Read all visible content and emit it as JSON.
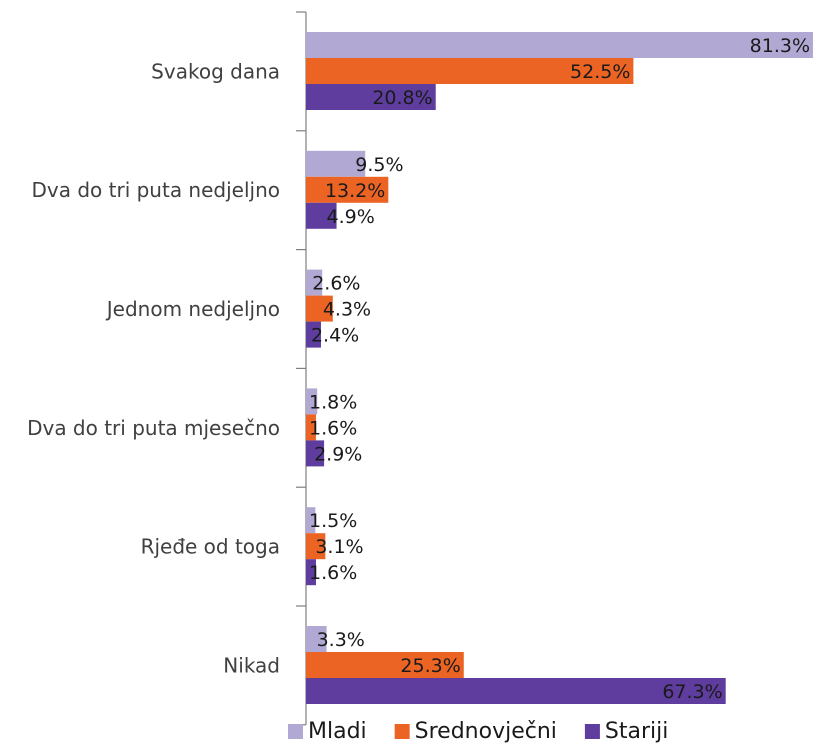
{
  "chart_data": {
    "type": "bar",
    "orientation": "horizontal",
    "title": "",
    "xlabel": "",
    "ylabel": "",
    "categories": [
      "Svakog dana",
      "Dva do tri puta nedjeljno",
      "Jednom nedjeljno",
      "Dva do tri puta mjesečno",
      "Rjeđe od toga",
      "Nikad"
    ],
    "series": [
      {
        "name": "Mladi",
        "color": "#B1A9D3",
        "values": [
          81.3,
          9.5,
          2.6,
          1.8,
          1.5,
          3.3
        ],
        "labels": [
          "81.3%",
          "9.5%",
          "2.6%",
          "1.8%",
          "1.5%",
          "3.3%"
        ]
      },
      {
        "name": "Srednovječni",
        "color": "#EC6424",
        "values": [
          52.5,
          13.2,
          4.3,
          1.6,
          3.1,
          25.3
        ],
        "labels": [
          "52.5%",
          "13.2%",
          "4.3%",
          "1.6%",
          "3.1%",
          "25.3%"
        ]
      },
      {
        "name": "Stariji",
        "color": "#5E3D9E",
        "values": [
          20.8,
          4.9,
          2.4,
          2.9,
          1.6,
          67.3
        ],
        "labels": [
          "20.8%",
          "4.9%",
          "2.4%",
          "2.9%",
          "1.6%",
          "67.3%"
        ]
      }
    ],
    "xlim": [
      0,
      81.3
    ],
    "grid": false,
    "legend_position": "bottom"
  }
}
